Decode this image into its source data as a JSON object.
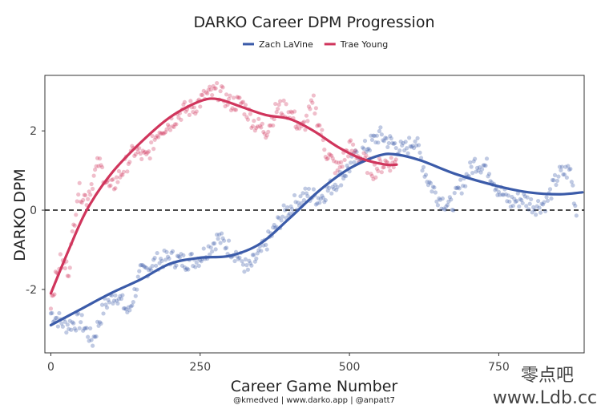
{
  "chart_data": {
    "type": "scatter",
    "title": "DARKO Career DPM Progression",
    "xlabel": "Career Game Number",
    "ylabel": "DARKO DPM",
    "caption": "@kmedved | www.darko.app | @anpatt7",
    "xlim": [
      -10,
      893
    ],
    "ylim": [
      -3.6,
      3.4
    ],
    "xticks": [
      0,
      250,
      500,
      750
    ],
    "xtick_labels": [
      "0",
      "250",
      "500",
      "750"
    ],
    "yticks": [
      -2,
      0,
      2
    ],
    "ytick_labels": [
      "-2",
      "0",
      "2"
    ],
    "reference_line": {
      "y": 0,
      "style": "dashed"
    },
    "grid": false,
    "legend": {
      "position": "top-center"
    },
    "series": [
      {
        "name": "Zach LaVine",
        "color": "#3b5ba9",
        "games": 882,
        "smooth": [
          [
            0,
            -2.9
          ],
          [
            50,
            -2.5
          ],
          [
            100,
            -2.1
          ],
          [
            150,
            -1.75
          ],
          [
            200,
            -1.35
          ],
          [
            250,
            -1.2
          ],
          [
            300,
            -1.15
          ],
          [
            350,
            -0.85
          ],
          [
            400,
            -0.2
          ],
          [
            450,
            0.5
          ],
          [
            500,
            1.05
          ],
          [
            550,
            1.38
          ],
          [
            580,
            1.4
          ],
          [
            620,
            1.25
          ],
          [
            680,
            0.9
          ],
          [
            750,
            0.6
          ],
          [
            800,
            0.45
          ],
          [
            850,
            0.4
          ],
          [
            890,
            0.45
          ]
        ],
        "points_summary": [
          [
            0,
            -2.6
          ],
          [
            25,
            -2.9
          ],
          [
            50,
            -2.8
          ],
          [
            70,
            -3.3
          ],
          [
            90,
            -2.4
          ],
          [
            110,
            -2.1
          ],
          [
            130,
            -2.6
          ],
          [
            150,
            -1.6
          ],
          [
            175,
            -1.3
          ],
          [
            200,
            -1.2
          ],
          [
            225,
            -1.3
          ],
          [
            250,
            -1.2
          ],
          [
            280,
            -0.7
          ],
          [
            310,
            -1.1
          ],
          [
            330,
            -1.5
          ],
          [
            350,
            -1.1
          ],
          [
            370,
            -0.6
          ],
          [
            390,
            -0.1
          ],
          [
            410,
            0.2
          ],
          [
            430,
            0.4
          ],
          [
            450,
            0.3
          ],
          [
            470,
            0.6
          ],
          [
            490,
            0.9
          ],
          [
            510,
            1.3
          ],
          [
            530,
            1.6
          ],
          [
            550,
            1.9
          ],
          [
            570,
            1.7
          ],
          [
            590,
            1.5
          ],
          [
            610,
            1.8
          ],
          [
            630,
            0.8
          ],
          [
            650,
            0.3
          ],
          [
            670,
            0.1
          ],
          [
            690,
            0.7
          ],
          [
            710,
            1.2
          ],
          [
            730,
            1.1
          ],
          [
            750,
            0.5
          ],
          [
            770,
            0.2
          ],
          [
            790,
            0.3
          ],
          [
            810,
            0.1
          ],
          [
            830,
            0.2
          ],
          [
            850,
            0.9
          ],
          [
            870,
            1.0
          ],
          [
            882,
            -0.3
          ]
        ]
      },
      {
        "name": "Trae Young",
        "color": "#d0355c",
        "games": 579,
        "smooth": [
          [
            0,
            -2.1
          ],
          [
            30,
            -1.0
          ],
          [
            60,
            0.0
          ],
          [
            100,
            0.9
          ],
          [
            150,
            1.7
          ],
          [
            200,
            2.35
          ],
          [
            250,
            2.75
          ],
          [
            280,
            2.8
          ],
          [
            320,
            2.6
          ],
          [
            360,
            2.4
          ],
          [
            400,
            2.3
          ],
          [
            440,
            2.0
          ],
          [
            480,
            1.6
          ],
          [
            520,
            1.3
          ],
          [
            560,
            1.15
          ],
          [
            579,
            1.15
          ]
        ],
        "points_summary": [
          [
            0,
            -2.3
          ],
          [
            15,
            -1.3
          ],
          [
            30,
            -1.5
          ],
          [
            45,
            0.5
          ],
          [
            60,
            0.3
          ],
          [
            80,
            1.2
          ],
          [
            100,
            0.5
          ],
          [
            120,
            1.0
          ],
          [
            140,
            1.5
          ],
          [
            160,
            1.3
          ],
          [
            180,
            2.0
          ],
          [
            200,
            2.2
          ],
          [
            220,
            2.5
          ],
          [
            240,
            2.6
          ],
          [
            260,
            2.9
          ],
          [
            280,
            3.0
          ],
          [
            300,
            2.7
          ],
          [
            320,
            2.7
          ],
          [
            340,
            2.2
          ],
          [
            360,
            2.0
          ],
          [
            380,
            2.6
          ],
          [
            400,
            2.5
          ],
          [
            420,
            2.0
          ],
          [
            440,
            2.7
          ],
          [
            460,
            1.5
          ],
          [
            480,
            1.0
          ],
          [
            500,
            1.6
          ],
          [
            520,
            1.3
          ],
          [
            540,
            1.0
          ],
          [
            560,
            1.2
          ],
          [
            579,
            1.2
          ]
        ]
      }
    ]
  },
  "watermark": {
    "cn": "零点吧",
    "url": "www.Ldb.cc"
  }
}
